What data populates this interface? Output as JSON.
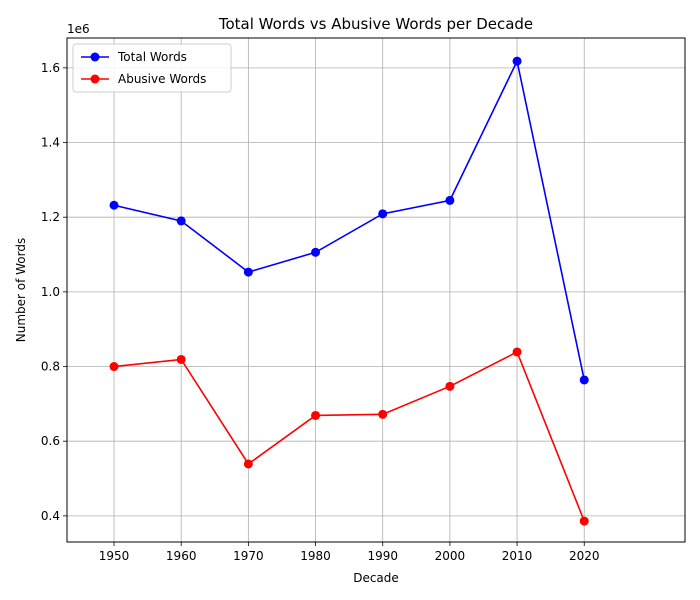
{
  "chart_data": {
    "type": "line",
    "title": "Total Words vs Abusive Words per Decade",
    "xlabel": "Decade",
    "ylabel": "Number of Words",
    "y_offset_label": "1e6",
    "x": [
      1950,
      1960,
      1970,
      1980,
      1990,
      2000,
      2010,
      2020
    ],
    "x_tick_labels": [
      "1950",
      "1960",
      "1970",
      "1980",
      "1990",
      "2000",
      "2010",
      "2020"
    ],
    "y_ticks": [
      0.4,
      0.6,
      0.8,
      1.0,
      1.2,
      1.4,
      1.6
    ],
    "y_tick_labels": [
      "0.4",
      "0.6",
      "0.8",
      "1.0",
      "1.2",
      "1.4",
      "1.6"
    ],
    "xlim": [
      1943,
      2035
    ],
    "ylim": [
      0.33,
      1.68
    ],
    "y_scale_note": "values in millions (×1e6)",
    "grid": true,
    "legend_position": "top-left",
    "series": [
      {
        "name": "Total Words",
        "color": "#0000ff",
        "marker": "circle",
        "values": [
          1.232,
          1.19,
          1.053,
          1.106,
          1.209,
          1.245,
          1.618,
          0.764
        ]
      },
      {
        "name": "Abusive Words",
        "color": "#ff0000",
        "marker": "circle",
        "values": [
          0.8,
          0.819,
          0.539,
          0.669,
          0.672,
          0.747,
          0.839,
          0.386
        ]
      }
    ]
  }
}
